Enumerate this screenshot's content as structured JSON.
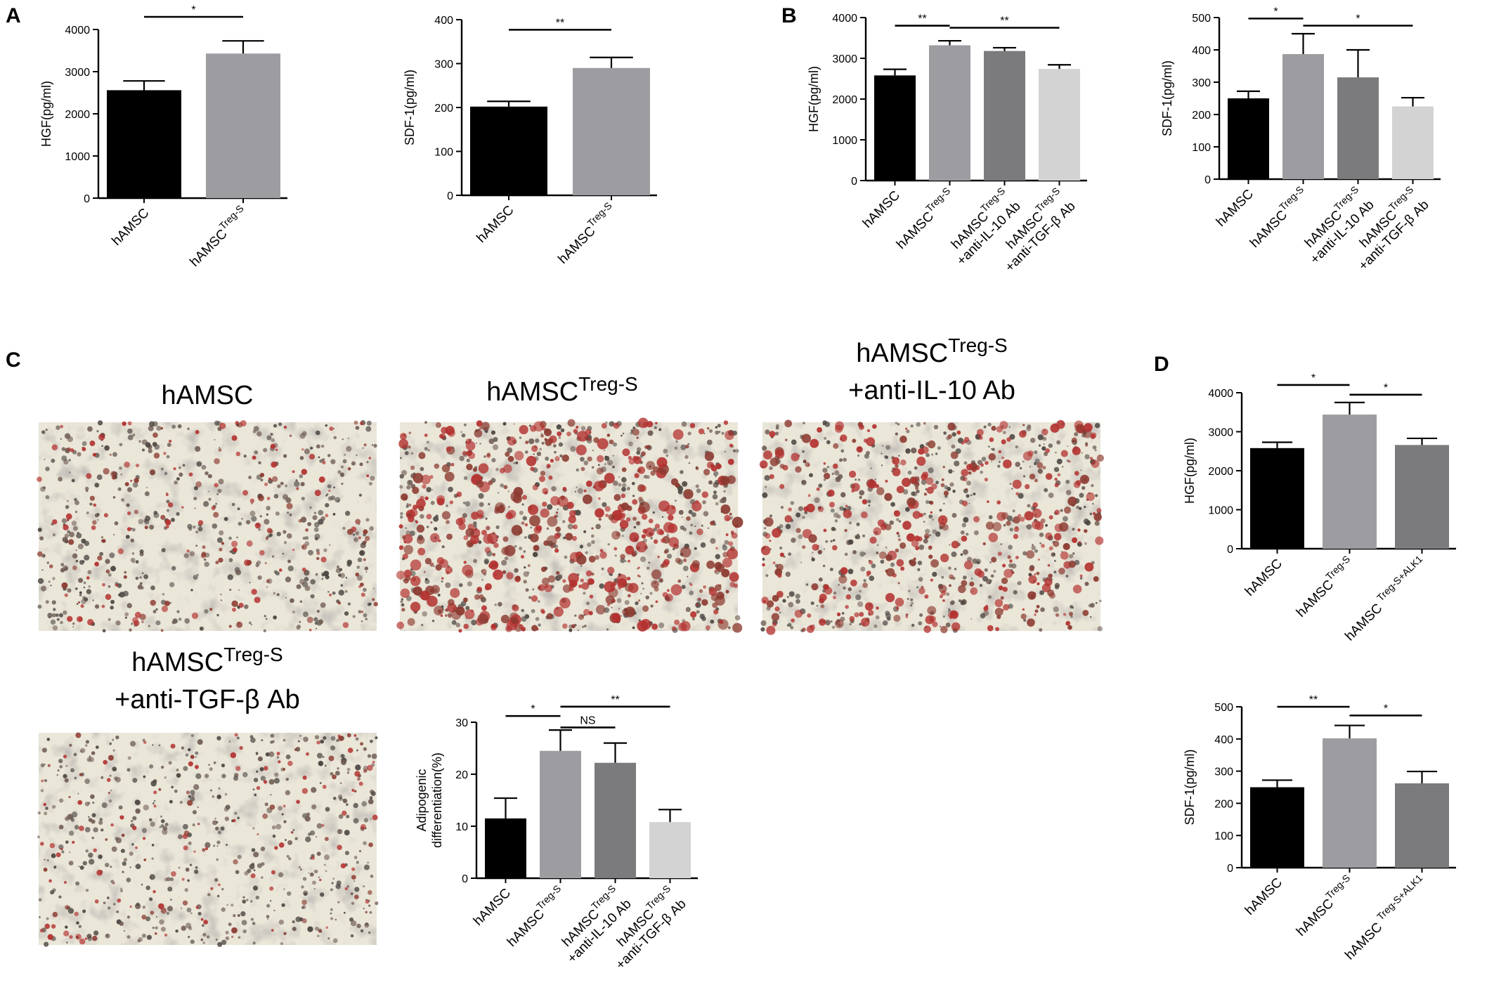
{
  "panel_labels": [
    "A",
    "B",
    "C",
    "D"
  ],
  "photos": [
    {
      "label_main": "hAMSC",
      "label_sup": "",
      "label_line2": "",
      "red_density": 0.2
    },
    {
      "label_main": "hAMSC",
      "label_sup": "Treg-S",
      "label_line2": "",
      "red_density": 0.75
    },
    {
      "label_main": "hAMSC",
      "label_sup": "Treg-S",
      "label_line2": "+anti-IL-10 Ab",
      "red_density": 0.55
    },
    {
      "label_main": "hAMSC",
      "label_sup": "Treg-S",
      "label_line2": "+anti-TGF-β Ab",
      "red_density": 0.15
    }
  ],
  "chart_data": [
    {
      "id": "A1",
      "panel": "A",
      "type": "bar",
      "ylabel": "HGF(pg/ml)",
      "ylim": [
        0,
        4000
      ],
      "yticks": [
        0,
        1000,
        2000,
        3000,
        4000
      ],
      "categories": [
        {
          "main": "hAMSC",
          "sup": ""
        },
        {
          "main": "hAMSC",
          "sup": "Treg-S"
        }
      ],
      "values": [
        2560,
        3430
      ],
      "errors": [
        220,
        300
      ],
      "colors": [
        "#000000",
        "#9d9da1"
      ],
      "significance": [
        {
          "from": 0,
          "to": 1,
          "label": "*",
          "level": 4300
        }
      ]
    },
    {
      "id": "A2",
      "panel": "A",
      "type": "bar",
      "ylabel": "SDF-1(pg/ml)",
      "ylim": [
        0,
        400
      ],
      "yticks": [
        0,
        100,
        200,
        300,
        400
      ],
      "categories": [
        {
          "main": "hAMSC",
          "sup": ""
        },
        {
          "main": "hAMSC",
          "sup": "Treg-S"
        }
      ],
      "values": [
        202,
        290
      ],
      "errors": [
        12,
        24
      ],
      "colors": [
        "#000000",
        "#9d9da1"
      ],
      "significance": [
        {
          "from": 0,
          "to": 1,
          "label": "**",
          "level": 377
        }
      ]
    },
    {
      "id": "B1",
      "panel": "B",
      "type": "bar",
      "ylabel": "HGF(pg/ml)",
      "ylim": [
        0,
        4000
      ],
      "yticks": [
        0,
        1000,
        2000,
        3000,
        4000
      ],
      "categories": [
        {
          "main": "hAMSC",
          "sup": ""
        },
        {
          "main": "hAMSC",
          "sup": "Treg-S"
        },
        {
          "main": "hAMSC",
          "sup": "Treg-S",
          "line2": "+anti-IL-10 Ab"
        },
        {
          "main": "hAMSC",
          "sup": "Treg-S",
          "line2": "+anti-TGF-β Ab"
        }
      ],
      "values": [
        2580,
        3320,
        3180,
        2740
      ],
      "errors": [
        150,
        110,
        80,
        100
      ],
      "colors": [
        "#000000",
        "#9d9da1",
        "#7b7b7e",
        "#d3d3d3"
      ],
      "significance": [
        {
          "from": 0,
          "to": 1,
          "label": "**",
          "level": 3800
        },
        {
          "from": 1,
          "to": 3,
          "label": "**",
          "level": 3750
        }
      ]
    },
    {
      "id": "B2",
      "panel": "B",
      "type": "bar",
      "ylabel": "SDF-1(pg/ml)",
      "ylim": [
        0,
        500
      ],
      "yticks": [
        0,
        100,
        200,
        300,
        400,
        500
      ],
      "categories": [
        {
          "main": "hAMSC",
          "sup": ""
        },
        {
          "main": "hAMSC",
          "sup": "Treg-S"
        },
        {
          "main": "hAMSC",
          "sup": "Treg-S",
          "line2": "+anti-IL-10 Ab"
        },
        {
          "main": "hAMSC",
          "sup": "Treg-S",
          "line2": "+anti-TGF-β Ab"
        }
      ],
      "values": [
        250,
        387,
        315,
        225
      ],
      "errors": [
        22,
        63,
        85,
        27
      ],
      "colors": [
        "#000000",
        "#9d9da1",
        "#7b7b7e",
        "#d3d3d3"
      ],
      "significance": [
        {
          "from": 0,
          "to": 1,
          "label": "*",
          "level": 497
        },
        {
          "from": 1,
          "to": 3,
          "label": "*",
          "level": 475
        }
      ]
    },
    {
      "id": "C1",
      "panel": "C",
      "type": "bar",
      "ylabel": "Adipogenic differentiation(%)",
      "ylim": [
        0,
        30
      ],
      "yticks": [
        0,
        10,
        20,
        30
      ],
      "categories": [
        {
          "main": "hAMSC",
          "sup": ""
        },
        {
          "main": "hAMSC",
          "sup": "Treg-S"
        },
        {
          "main": "hAMSC",
          "sup": "Treg-S",
          "line2": "+anti-IL-10 Ab"
        },
        {
          "main": "hAMSC",
          "sup": "Treg-S",
          "line2": "+anti-TGF-β Ab"
        }
      ],
      "values": [
        11.5,
        24.5,
        22.2,
        10.8
      ],
      "errors": [
        3.9,
        4.0,
        3.8,
        2.4
      ],
      "colors": [
        "#000000",
        "#9d9da1",
        "#7b7b7e",
        "#d3d3d3"
      ],
      "significance": [
        {
          "from": 0,
          "to": 1,
          "label": "*",
          "level": 31.2
        },
        {
          "from": 1,
          "to": 2,
          "label": "NS",
          "level": 29.0
        },
        {
          "from": 1,
          "to": 3,
          "label": "**",
          "level": 33.0
        }
      ]
    },
    {
      "id": "D1",
      "panel": "D",
      "type": "bar",
      "ylabel": "HGF(pg/ml)",
      "ylim": [
        0,
        4000
      ],
      "yticks": [
        0,
        1000,
        2000,
        3000,
        4000
      ],
      "categories": [
        {
          "main": "hAMSC",
          "sup": ""
        },
        {
          "main": "hAMSC",
          "sup": "Treg-S"
        },
        {
          "main": "hAMSC ",
          "sup": "Treg-S+ALK1"
        }
      ],
      "values": [
        2580,
        3440,
        2660
      ],
      "errors": [
        150,
        310,
        170
      ],
      "colors": [
        "#000000",
        "#9d9da1",
        "#7b7b7e"
      ],
      "significance": [
        {
          "from": 0,
          "to": 1,
          "label": "*",
          "level": 4200
        },
        {
          "from": 1,
          "to": 2,
          "label": "*",
          "level": 3950
        }
      ]
    },
    {
      "id": "D2",
      "panel": "D",
      "type": "bar",
      "ylabel": "SDF-1(pg/ml)",
      "ylim": [
        0,
        500
      ],
      "yticks": [
        0,
        100,
        200,
        300,
        400,
        500
      ],
      "categories": [
        {
          "main": "hAMSC",
          "sup": ""
        },
        {
          "main": "hAMSC",
          "sup": "Treg-S"
        },
        {
          "main": "hAMSC ",
          "sup": "Treg-S+ALK1"
        }
      ],
      "values": [
        250,
        402,
        262
      ],
      "errors": [
        22,
        40,
        37
      ],
      "colors": [
        "#000000",
        "#9d9da1",
        "#7b7b7e"
      ],
      "significance": [
        {
          "from": 0,
          "to": 1,
          "label": "**",
          "level": 500
        },
        {
          "from": 1,
          "to": 2,
          "label": "*",
          "level": 473
        }
      ]
    }
  ]
}
